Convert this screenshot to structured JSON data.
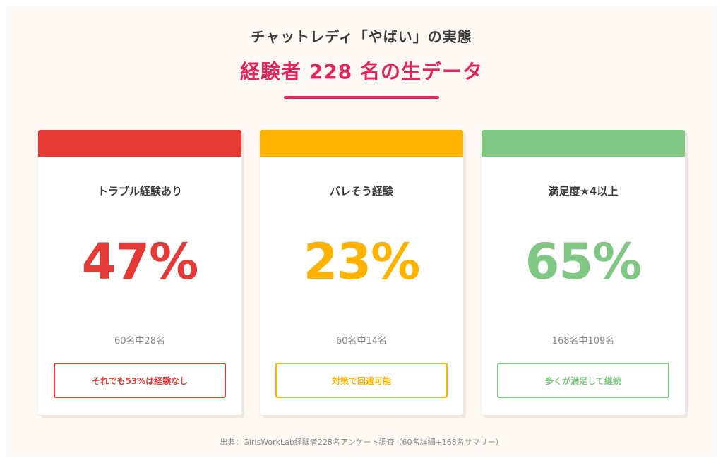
{
  "header": {
    "title": "チャットレディ「やばい」の実態",
    "subtitle": "経験者 228 名の生データ"
  },
  "colors": {
    "accent": "#e0245e",
    "card1": "#e53935",
    "card2": "#ffb300",
    "card3": "#81c784"
  },
  "cards": [
    {
      "title": "トラブル経験あり",
      "value": "47%",
      "sub": "60名中28名",
      "note": "それでも53%は経験なし"
    },
    {
      "title": "バレそう経験",
      "value": "23%",
      "sub": "60名中14名",
      "note": "対策で回避可能"
    },
    {
      "title": "満足度★4以上",
      "value": "65%",
      "sub": "168名中109名",
      "note": "多くが満足して継続"
    }
  ],
  "footer": {
    "source": "出典：GirlsWorkLab経験者228名アンケート調査（60名詳細+168名サマリー）"
  }
}
